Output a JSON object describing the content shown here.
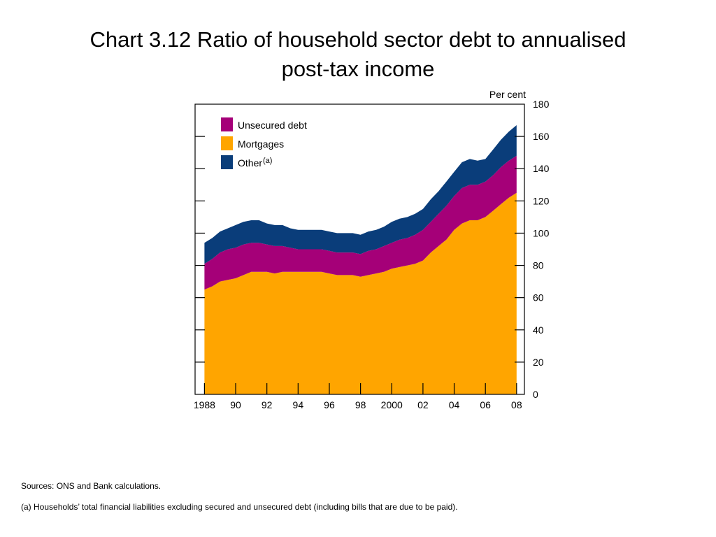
{
  "page": {
    "title_line1": "Chart 3.12  Ratio of household sector debt to annualised",
    "title_line2": "post-tax income",
    "sources": "Sources:  ONS and Bank calculations.",
    "footnote": "(a)  Households’ total financial liabilities excluding secured and unsecured debt (including bills that are due to be paid)."
  },
  "chart_data": {
    "type": "area",
    "stacked": true,
    "ylabel": "Per cent",
    "ylim": [
      0,
      180
    ],
    "yticks": [
      0,
      20,
      40,
      60,
      80,
      100,
      120,
      140,
      160,
      180
    ],
    "xlim": [
      1987.4,
      2008.5
    ],
    "xticks": [
      {
        "v": 1988,
        "label": "1988"
      },
      {
        "v": 1990,
        "label": "90"
      },
      {
        "v": 1992,
        "label": "92"
      },
      {
        "v": 1994,
        "label": "94"
      },
      {
        "v": 1996,
        "label": "96"
      },
      {
        "v": 1998,
        "label": "98"
      },
      {
        "v": 2000,
        "label": "2000"
      },
      {
        "v": 2002,
        "label": "02"
      },
      {
        "v": 2004,
        "label": "04"
      },
      {
        "v": 2006,
        "label": "06"
      },
      {
        "v": 2008,
        "label": "08"
      }
    ],
    "legend_position": "top-left",
    "legend": [
      {
        "label": "Unsecured debt",
        "sup": ""
      },
      {
        "label": "Mortgages",
        "sup": ""
      },
      {
        "label": "Other",
        "sup": "(a)"
      }
    ],
    "x": [
      1988.0,
      1988.5,
      1989.0,
      1989.5,
      1990.0,
      1990.5,
      1991.0,
      1991.5,
      1992.0,
      1992.5,
      1993.0,
      1993.5,
      1994.0,
      1994.5,
      1995.0,
      1995.5,
      1996.0,
      1996.5,
      1997.0,
      1997.5,
      1998.0,
      1998.5,
      1999.0,
      1999.5,
      2000.0,
      2000.5,
      2001.0,
      2001.5,
      2002.0,
      2002.5,
      2003.0,
      2003.5,
      2004.0,
      2004.5,
      2005.0,
      2005.5,
      2006.0,
      2006.5,
      2007.0,
      2007.5,
      2008.0
    ],
    "series": [
      {
        "name": "Mortgages",
        "color": "#FFA500",
        "values": [
          65,
          67,
          70,
          71,
          72,
          74,
          76,
          76,
          76,
          75,
          76,
          76,
          76,
          76,
          76,
          76,
          75,
          74,
          74,
          74,
          73,
          74,
          75,
          76,
          78,
          79,
          80,
          81,
          83,
          88,
          92,
          96,
          102,
          106,
          108,
          108,
          110,
          114,
          118,
          122,
          125
        ]
      },
      {
        "name": "Unsecured debt",
        "color": "#A50078",
        "values": [
          16,
          17,
          18,
          19,
          19,
          19,
          18,
          18,
          17,
          17,
          16,
          15,
          14,
          14,
          14,
          14,
          14,
          14,
          14,
          14,
          14,
          15,
          15,
          16,
          16,
          17,
          17,
          18,
          19,
          19,
          20,
          21,
          21,
          22,
          22,
          22,
          22,
          22,
          23,
          23,
          23
        ]
      },
      {
        "name": "Other",
        "color": "#0A3D7A",
        "values": [
          13,
          13,
          13,
          13,
          14,
          14,
          14,
          14,
          13,
          13,
          13,
          12,
          12,
          12,
          12,
          12,
          12,
          12,
          12,
          12,
          12,
          12,
          12,
          12,
          13,
          13,
          13,
          13,
          13,
          14,
          14,
          15,
          15,
          16,
          16,
          15,
          14,
          16,
          17,
          18,
          19
        ]
      }
    ]
  }
}
